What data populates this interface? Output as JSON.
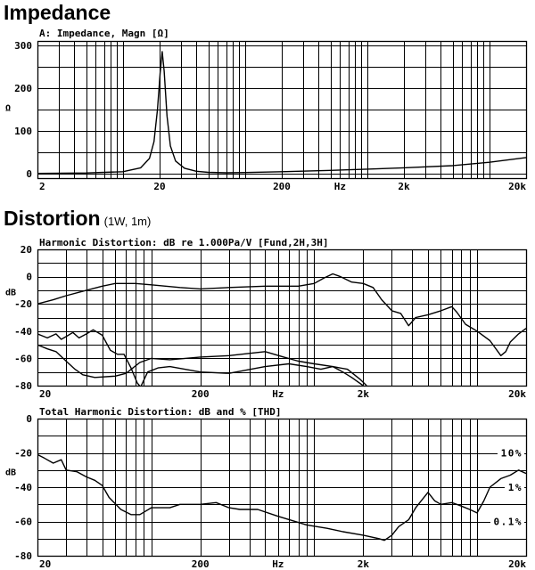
{
  "sections": {
    "impedance": {
      "heading": "Impedance"
    },
    "distortion": {
      "heading": "Distortion",
      "subheading": "(1W, 1m)"
    }
  },
  "chart_data": [
    {
      "type": "line",
      "title": "A: Impedance, Magn [Ω]",
      "xscale": "log",
      "xlim": [
        2,
        20000
      ],
      "ylim": [
        -10,
        310
      ],
      "ylabel": "Ω",
      "xticks": [
        {
          "value": 2,
          "label": "2"
        },
        {
          "value": 20,
          "label": "20"
        },
        {
          "value": 200,
          "label": "200"
        },
        {
          "value": 600,
          "label": "Hz"
        },
        {
          "value": 2000,
          "label": "2k"
        },
        {
          "value": 20000,
          "label": "20k"
        }
      ],
      "yticks": [
        {
          "value": 0,
          "label": "0"
        },
        {
          "value": 100,
          "label": "100"
        },
        {
          "value": 200,
          "label": "200"
        },
        {
          "value": 300,
          "label": "300"
        }
      ],
      "hgrid": [
        0,
        50,
        100,
        150,
        200,
        250,
        300
      ],
      "grid": true,
      "series": [
        {
          "points": [
            [
              2,
              1
            ],
            [
              5,
              2
            ],
            [
              10,
              5
            ],
            [
              14,
              14
            ],
            [
              16.5,
              36
            ],
            [
              18,
              75
            ],
            [
              19.2,
              150
            ],
            [
              20.2,
              235
            ],
            [
              21,
              285
            ],
            [
              21.8,
              240
            ],
            [
              23,
              135
            ],
            [
              24.5,
              65
            ],
            [
              27,
              30
            ],
            [
              32,
              13
            ],
            [
              40,
              6
            ],
            [
              50,
              3.5
            ],
            [
              70,
              2.5
            ],
            [
              100,
              3
            ],
            [
              200,
              5
            ],
            [
              500,
              8
            ],
            [
              1000,
              11
            ],
            [
              2000,
              14
            ],
            [
              5000,
              19
            ],
            [
              10000,
              27
            ],
            [
              20000,
              38
            ]
          ]
        }
      ]
    },
    {
      "type": "line",
      "title": "Harmonic Distortion: dB re 1.000Pa/V [Fund,2H,3H]",
      "xscale": "log",
      "xlim": [
        20,
        20000
      ],
      "ylim": [
        -80,
        20
      ],
      "ylabel": "dB",
      "xticks": [
        {
          "value": 20,
          "label": "20"
        },
        {
          "value": 200,
          "label": "200"
        },
        {
          "value": 600,
          "label": "Hz"
        },
        {
          "value": 2000,
          "label": "2k"
        },
        {
          "value": 20000,
          "label": "20k"
        }
      ],
      "yticks": [
        {
          "value": 20,
          "label": "20"
        },
        {
          "value": 0,
          "label": "0"
        },
        {
          "value": -20,
          "label": "-20"
        },
        {
          "value": -40,
          "label": "-40"
        },
        {
          "value": -60,
          "label": "-60"
        },
        {
          "value": -80,
          "label": "-80"
        }
      ],
      "hgrid": [
        20,
        10,
        0,
        -10,
        -20,
        -30,
        -40,
        -50,
        -60,
        -70,
        -80
      ],
      "grid": true,
      "series": [
        {
          "points": [
            [
              20,
              -20
            ],
            [
              25,
              -17
            ],
            [
              30,
              -14
            ],
            [
              40,
              -10
            ],
            [
              50,
              -7
            ],
            [
              60,
              -5
            ],
            [
              80,
              -5
            ],
            [
              100,
              -6
            ],
            [
              150,
              -8
            ],
            [
              200,
              -9
            ],
            [
              300,
              -8
            ],
            [
              500,
              -7
            ],
            [
              800,
              -7
            ],
            [
              1000,
              -5
            ],
            [
              1150,
              -1
            ],
            [
              1300,
              2
            ],
            [
              1450,
              0
            ],
            [
              1700,
              -4
            ],
            [
              2000,
              -5
            ],
            [
              2300,
              -8
            ],
            [
              2600,
              -17
            ],
            [
              3000,
              -25
            ],
            [
              3400,
              -27
            ],
            [
              3800,
              -36
            ],
            [
              4200,
              -30
            ],
            [
              5000,
              -28
            ],
            [
              6000,
              -25
            ],
            [
              7000,
              -22
            ],
            [
              7500,
              -26
            ],
            [
              8500,
              -35
            ],
            [
              10000,
              -40
            ],
            [
              12000,
              -47
            ],
            [
              14000,
              -58
            ],
            [
              15000,
              -55
            ],
            [
              16000,
              -48
            ],
            [
              18000,
              -42
            ],
            [
              20000,
              -38
            ]
          ]
        },
        {
          "points": [
            [
              20,
              -42
            ],
            [
              23,
              -45
            ],
            [
              26,
              -42
            ],
            [
              28,
              -46
            ],
            [
              30,
              -44
            ],
            [
              33,
              -41
            ],
            [
              36,
              -45
            ],
            [
              40,
              -42
            ],
            [
              44,
              -39
            ],
            [
              50,
              -43
            ],
            [
              56,
              -54
            ],
            [
              62,
              -57
            ],
            [
              68,
              -57
            ],
            [
              75,
              -67
            ],
            [
              82,
              -78
            ],
            [
              86,
              -81
            ],
            [
              95,
              -70
            ],
            [
              110,
              -67
            ],
            [
              130,
              -66
            ],
            [
              200,
              -70
            ],
            [
              300,
              -71
            ],
            [
              500,
              -66
            ],
            [
              700,
              -64
            ],
            [
              900,
              -66
            ],
            [
              1100,
              -68
            ],
            [
              1300,
              -66
            ],
            [
              1500,
              -70
            ],
            [
              1700,
              -74
            ],
            [
              2000,
              -80
            ]
          ]
        },
        {
          "points": [
            [
              20,
              -50
            ],
            [
              23,
              -53
            ],
            [
              26,
              -55
            ],
            [
              30,
              -62
            ],
            [
              34,
              -68
            ],
            [
              38,
              -72
            ],
            [
              45,
              -74
            ],
            [
              60,
              -73
            ],
            [
              70,
              -71
            ],
            [
              85,
              -63
            ],
            [
              100,
              -60
            ],
            [
              130,
              -61
            ],
            [
              200,
              -59
            ],
            [
              300,
              -58
            ],
            [
              500,
              -55
            ],
            [
              650,
              -59
            ],
            [
              800,
              -62
            ],
            [
              1000,
              -64
            ],
            [
              1300,
              -66
            ],
            [
              1600,
              -68
            ],
            [
              1900,
              -75
            ],
            [
              2100,
              -80
            ]
          ]
        }
      ]
    },
    {
      "type": "line",
      "title": "Total Harmonic Distortion: dB and % [THD]",
      "xscale": "log",
      "xlim": [
        20,
        20000
      ],
      "ylim": [
        -80,
        0
      ],
      "ylabel": "dB",
      "xticks": [
        {
          "value": 20,
          "label": "20"
        },
        {
          "value": 200,
          "label": "200"
        },
        {
          "value": 600,
          "label": "Hz"
        },
        {
          "value": 2000,
          "label": "2k"
        },
        {
          "value": 20000,
          "label": "20k"
        }
      ],
      "yticks": [
        {
          "value": 0,
          "label": "0"
        },
        {
          "value": -20,
          "label": "-20"
        },
        {
          "value": -40,
          "label": "-40"
        },
        {
          "value": -60,
          "label": "-60"
        },
        {
          "value": -80,
          "label": "-80"
        }
      ],
      "hgrid": [
        0,
        -10,
        -20,
        -30,
        -40,
        -50,
        -60,
        -70,
        -80
      ],
      "grid": true,
      "annotations": [
        {
          "text": "10%",
          "y": -20
        },
        {
          "text": "1%",
          "y": -40
        },
        {
          "text": "0.1%",
          "y": -60
        }
      ],
      "series": [
        {
          "points": [
            [
              20,
              -21
            ],
            [
              22,
              -23
            ],
            [
              25,
              -26
            ],
            [
              28,
              -24
            ],
            [
              30,
              -30
            ],
            [
              35,
              -31
            ],
            [
              40,
              -34
            ],
            [
              45,
              -36
            ],
            [
              50,
              -39
            ],
            [
              55,
              -46
            ],
            [
              65,
              -53
            ],
            [
              75,
              -56
            ],
            [
              85,
              -56
            ],
            [
              100,
              -52
            ],
            [
              130,
              -52
            ],
            [
              150,
              -50
            ],
            [
              200,
              -50
            ],
            [
              250,
              -49
            ],
            [
              300,
              -52
            ],
            [
              350,
              -53
            ],
            [
              450,
              -53
            ],
            [
              600,
              -57
            ],
            [
              900,
              -62
            ],
            [
              1200,
              -64
            ],
            [
              1500,
              -66
            ],
            [
              2000,
              -68
            ],
            [
              2500,
              -70
            ],
            [
              2700,
              -71
            ],
            [
              3000,
              -68
            ],
            [
              3300,
              -63
            ],
            [
              3800,
              -59
            ],
            [
              4200,
              -52
            ],
            [
              5000,
              -43
            ],
            [
              5500,
              -48
            ],
            [
              6000,
              -50
            ],
            [
              7000,
              -49
            ],
            [
              8000,
              -51
            ],
            [
              9000,
              -53
            ],
            [
              10000,
              -55
            ],
            [
              11000,
              -48
            ],
            [
              12000,
              -40
            ],
            [
              14000,
              -35
            ],
            [
              16000,
              -33
            ],
            [
              18000,
              -30
            ],
            [
              20000,
              -32
            ]
          ]
        }
      ]
    }
  ]
}
